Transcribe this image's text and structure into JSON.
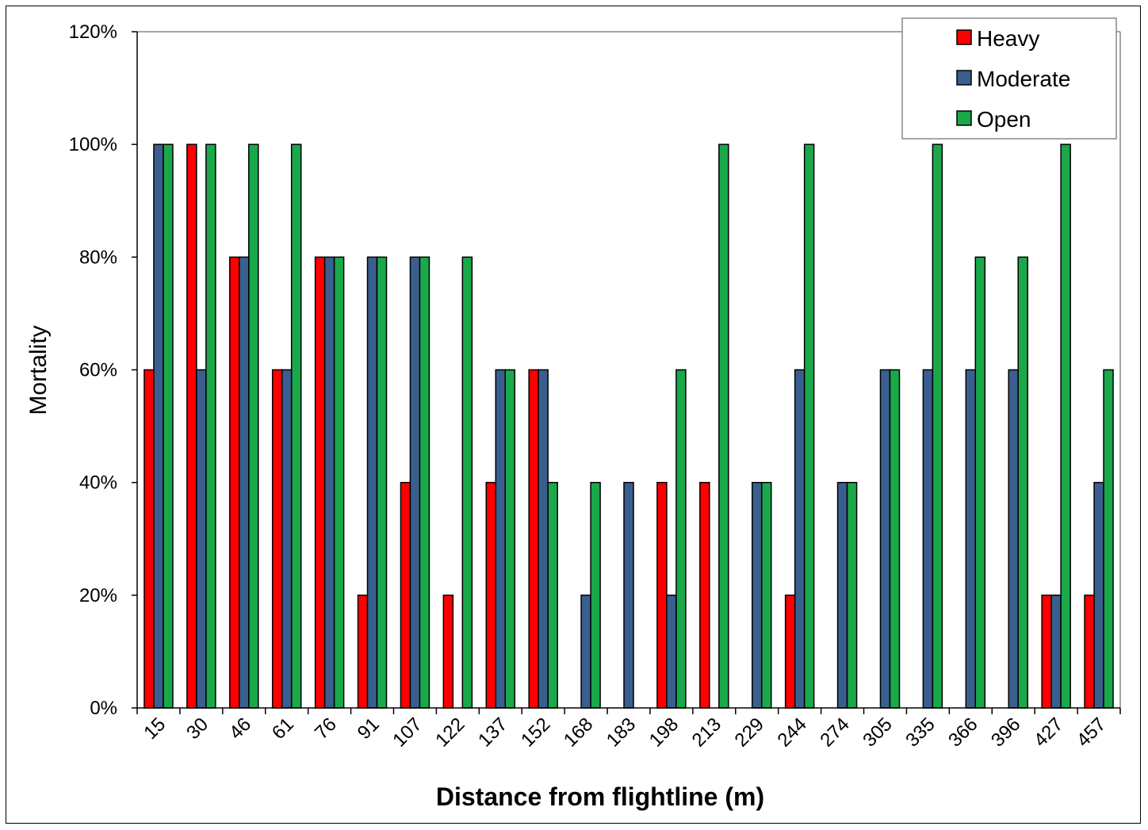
{
  "chart_data": {
    "type": "bar",
    "title": "",
    "xlabel": "Distance from flightline (m)",
    "ylabel": "Mortality",
    "ylim": [
      0,
      1.2
    ],
    "yticks": [
      0,
      0.2,
      0.4,
      0.6,
      0.8,
      1.0,
      1.2
    ],
    "ytick_labels": [
      "0%",
      "20%",
      "40%",
      "60%",
      "80%",
      "100%",
      "120%"
    ],
    "grid": false,
    "legend_position": "top-right",
    "categories": [
      "15",
      "30",
      "46",
      "61",
      "76",
      "91",
      "107",
      "122",
      "137",
      "152",
      "168",
      "183",
      "198",
      "213",
      "229",
      "244",
      "274",
      "305",
      "335",
      "366",
      "396",
      "427",
      "457"
    ],
    "series": [
      {
        "name": "Heavy",
        "color": "#ff0000",
        "values": [
          0.6,
          1.0,
          0.8,
          0.6,
          0.8,
          0.2,
          0.4,
          0.2,
          0.4,
          0.6,
          0,
          0,
          0.4,
          0.4,
          0,
          0.2,
          0,
          0,
          0,
          0,
          0,
          0.2,
          0.2
        ]
      },
      {
        "name": "Moderate",
        "color": "#3a5f8f",
        "values": [
          1.0,
          0.6,
          0.8,
          0.6,
          0.8,
          0.8,
          0.8,
          0,
          0.6,
          0.6,
          0.2,
          0.4,
          0.2,
          0,
          0.4,
          0.6,
          0.4,
          0.6,
          0.6,
          0.6,
          0.6,
          0.2,
          0.4
        ]
      },
      {
        "name": "Open",
        "color": "#1aa84a",
        "values": [
          1.0,
          1.0,
          1.0,
          1.0,
          0.8,
          0.8,
          0.8,
          0.8,
          0.6,
          0.4,
          0.4,
          0,
          0.6,
          1.0,
          0.4,
          1.0,
          0.4,
          0.6,
          1.0,
          0.8,
          0.8,
          1.0,
          0.6
        ]
      }
    ]
  }
}
